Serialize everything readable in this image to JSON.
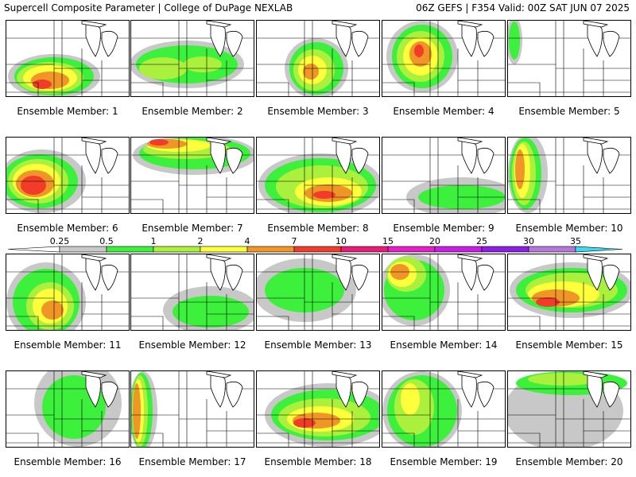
{
  "header": {
    "left": "Supercell Composite Parameter | College of DuPage NEXLAB",
    "right": "06Z GEFS | F354 Valid: 00Z SAT JUN 07 2025"
  },
  "colorbar": {
    "ticks": [
      "0.25",
      "0.5",
      "1",
      "2",
      "4",
      "7",
      "10",
      "15",
      "20",
      "25",
      "30",
      "35"
    ],
    "colors": [
      "#c8c8c8",
      "#3cf03c",
      "#aaf03c",
      "#ffff3c",
      "#f09628",
      "#f03c28",
      "#e61e78",
      "#e61ec8",
      "#c81ee6",
      "#8c1ee6",
      "#b478dc",
      "#3cdcf0"
    ]
  },
  "map": {
    "land_color": "#ffffff",
    "boundary_color": "#000000"
  },
  "members": [
    {
      "label": "Ensemble Member: 1"
    },
    {
      "label": "Ensemble Member: 2"
    },
    {
      "label": "Ensemble Member: 3"
    },
    {
      "label": "Ensemble Member: 4"
    },
    {
      "label": "Ensemble Member: 5"
    },
    {
      "label": "Ensemble Member: 6"
    },
    {
      "label": "Ensemble Member: 7"
    },
    {
      "label": "Ensemble Member: 8"
    },
    {
      "label": "Ensemble Member: 9"
    },
    {
      "label": "Ensemble Member: 10"
    },
    {
      "label": "Ensemble Member: 11"
    },
    {
      "label": "Ensemble Member: 12"
    },
    {
      "label": "Ensemble Member: 13"
    },
    {
      "label": "Ensemble Member: 14"
    },
    {
      "label": "Ensemble Member: 15"
    },
    {
      "label": "Ensemble Member: 16"
    },
    {
      "label": "Ensemble Member: 17"
    },
    {
      "label": "Ensemble Member: 18"
    },
    {
      "label": "Ensemble Member: 19"
    },
    {
      "label": "Ensemble Member: 20"
    }
  ]
}
